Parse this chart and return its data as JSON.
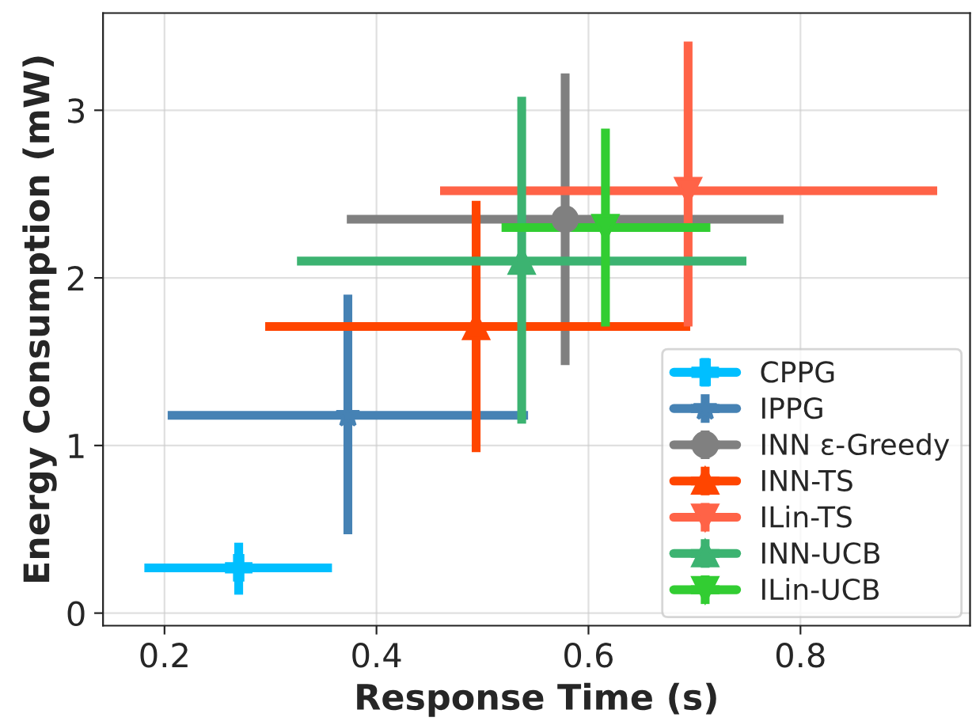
{
  "chart_data": {
    "type": "scatter",
    "xlabel": "Response Time (s)",
    "ylabel": "Energy Consumption (mW)",
    "xlim": [
      0.142,
      0.96
    ],
    "ylim": [
      -0.075,
      3.58
    ],
    "xticks": [
      0.2,
      0.4,
      0.6,
      0.8
    ],
    "yticks": [
      0,
      1,
      2,
      3
    ],
    "grid": true,
    "legend": "bottom right",
    "series": [
      {
        "name": "CPPG",
        "color": "#00bfff",
        "marker": "cross",
        "x": [
          0.27
        ],
        "values": [
          0.27
        ],
        "errors": [
          [
            0.11,
            0.42
          ]
        ],
        "xerrors": [
          [
            0.181,
            0.358
          ]
        ]
      },
      {
        "name": "IPPG",
        "color": "#4682b4",
        "marker": "star",
        "x": [
          0.373
        ],
        "values": [
          1.18
        ],
        "errors": [
          [
            0.47,
            1.9
          ]
        ],
        "xerrors": [
          [
            0.203,
            0.543
          ]
        ]
      },
      {
        "name": "INN ε-Greedy",
        "color": "#808080",
        "marker": "circle",
        "x": [
          0.578
        ],
        "values": [
          2.35
        ],
        "errors": [
          [
            1.48,
            3.22
          ]
        ],
        "xerrors": [
          [
            0.372,
            0.784
          ]
        ]
      },
      {
        "name": "INN-TS",
        "color": "#ff4500",
        "marker": "triangle",
        "x": [
          0.494
        ],
        "values": [
          1.71
        ],
        "errors": [
          [
            0.96,
            2.46
          ]
        ],
        "xerrors": [
          [
            0.295,
            0.696
          ]
        ]
      },
      {
        "name": "ILin-TS",
        "color": "#ff6347",
        "marker": "triangle_down",
        "x": [
          0.694
        ],
        "values": [
          2.52
        ],
        "errors": [
          [
            1.71,
            3.41
          ]
        ],
        "xerrors": [
          [
            0.46,
            0.929
          ]
        ]
      },
      {
        "name": "INN-UCB",
        "color": "#3cb371",
        "marker": "triangle",
        "x": [
          0.537
        ],
        "values": [
          2.1
        ],
        "errors": [
          [
            1.13,
            3.08
          ]
        ],
        "xerrors": [
          [
            0.325,
            0.749
          ]
        ]
      },
      {
        "name": "ILin-UCB",
        "color": "#32cd32",
        "marker": "triangle_down",
        "x": [
          0.616
        ],
        "values": [
          2.3
        ],
        "errors": [
          [
            1.71,
            2.89
          ]
        ],
        "xerrors": [
          [
            0.518,
            0.715
          ]
        ]
      }
    ]
  }
}
